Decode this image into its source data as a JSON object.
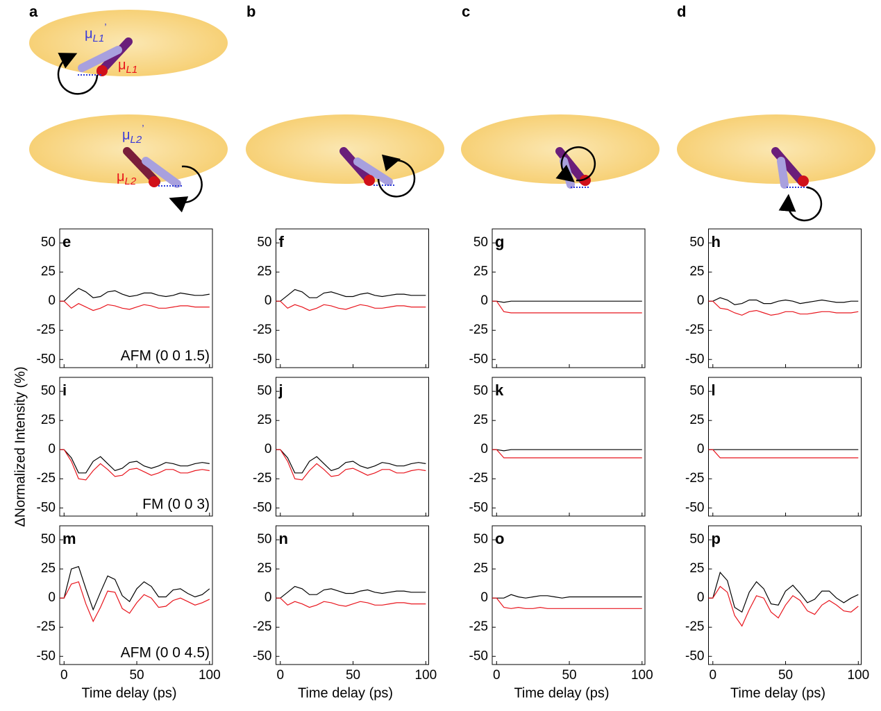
{
  "figure": {
    "panel_labels": [
      "a",
      "b",
      "c",
      "d"
    ],
    "illustration_labels": [
      {
        "symbol": "μ",
        "subscript": "L1",
        "prime": "’"
      },
      {
        "symbol": "μ",
        "subscript": "L1"
      },
      {
        "symbol": "μ",
        "subscript": "L2",
        "prime": "’"
      },
      {
        "symbol": "μ",
        "subscript": "L2"
      }
    ]
  },
  "chart_data": [
    {
      "type": "line",
      "label": "e",
      "annotation": "AFM (0 0 1.5)",
      "xlim": [
        -3,
        102
      ],
      "ylim": [
        -57,
        62
      ],
      "xticks": [
        0,
        50,
        100
      ],
      "yticks": [
        -50,
        -25,
        0,
        25,
        50
      ],
      "x": [
        -3,
        0,
        5,
        10,
        15,
        20,
        25,
        30,
        35,
        40,
        45,
        50,
        55,
        60,
        65,
        70,
        75,
        80,
        85,
        90,
        95,
        100
      ],
      "series": [
        {
          "color": "#000000",
          "values": [
            0,
            0,
            6,
            11,
            8,
            3,
            4,
            8,
            9,
            6,
            4,
            5,
            7,
            7,
            5,
            4,
            5,
            7,
            6,
            5,
            5,
            6
          ]
        },
        {
          "color": "#e8141c",
          "values": [
            0,
            0,
            -6,
            -2,
            -5,
            -8,
            -6,
            -3,
            -4,
            -6,
            -7,
            -5,
            -3,
            -4,
            -6,
            -6,
            -5,
            -4,
            -4,
            -5,
            -5,
            -5
          ]
        }
      ]
    },
    {
      "type": "line",
      "label": "f",
      "xlim": [
        -3,
        102
      ],
      "ylim": [
        -57,
        62
      ],
      "xticks": [
        0,
        50,
        100
      ],
      "yticks": [
        -50,
        -25,
        0,
        25,
        50
      ],
      "x": [
        -3,
        0,
        5,
        10,
        15,
        20,
        25,
        30,
        35,
        40,
        45,
        50,
        55,
        60,
        65,
        70,
        75,
        80,
        85,
        90,
        95,
        100
      ],
      "series": [
        {
          "color": "#000000",
          "values": [
            0,
            0,
            5,
            10,
            8,
            3,
            3,
            7,
            8,
            6,
            4,
            4,
            6,
            7,
            5,
            4,
            5,
            6,
            6,
            5,
            5,
            5
          ]
        },
        {
          "color": "#e8141c",
          "values": [
            0,
            0,
            -6,
            -3,
            -5,
            -8,
            -6,
            -3,
            -4,
            -6,
            -7,
            -5,
            -3,
            -4,
            -6,
            -6,
            -5,
            -4,
            -4,
            -5,
            -5,
            -5
          ]
        }
      ]
    },
    {
      "type": "line",
      "label": "g",
      "xlim": [
        -3,
        102
      ],
      "ylim": [
        -57,
        62
      ],
      "xticks": [
        0,
        50,
        100
      ],
      "yticks": [
        -50,
        -25,
        0,
        25,
        50
      ],
      "x": [
        -3,
        0,
        5,
        10,
        15,
        20,
        25,
        30,
        35,
        40,
        45,
        50,
        55,
        60,
        65,
        70,
        75,
        80,
        85,
        90,
        95,
        100
      ],
      "series": [
        {
          "color": "#000000",
          "values": [
            0,
            0,
            -1,
            0,
            0,
            0,
            0,
            0,
            0,
            0,
            0,
            0,
            0,
            0,
            0,
            0,
            0,
            0,
            0,
            0,
            0,
            0
          ]
        },
        {
          "color": "#e8141c",
          "values": [
            0,
            0,
            -9,
            -10,
            -10,
            -10,
            -10,
            -10,
            -10,
            -10,
            -10,
            -10,
            -10,
            -10,
            -10,
            -10,
            -10,
            -10,
            -10,
            -10,
            -10,
            -10
          ]
        }
      ]
    },
    {
      "type": "line",
      "label": "h",
      "xlim": [
        -3,
        102
      ],
      "ylim": [
        -57,
        62
      ],
      "xticks": [
        0,
        50,
        100
      ],
      "yticks": [
        -50,
        -25,
        0,
        25,
        50
      ],
      "x": [
        -3,
        0,
        5,
        10,
        15,
        20,
        25,
        30,
        35,
        40,
        45,
        50,
        55,
        60,
        65,
        70,
        75,
        80,
        85,
        90,
        95,
        100
      ],
      "series": [
        {
          "color": "#000000",
          "values": [
            0,
            0,
            3,
            1,
            -3,
            -2,
            1,
            1,
            -2,
            -2,
            0,
            1,
            0,
            -2,
            -1,
            0,
            1,
            0,
            -1,
            -1,
            0,
            0
          ]
        },
        {
          "color": "#e8141c",
          "values": [
            0,
            0,
            -6,
            -7,
            -10,
            -12,
            -9,
            -8,
            -10,
            -12,
            -11,
            -9,
            -9,
            -11,
            -11,
            -10,
            -9,
            -9,
            -10,
            -10,
            -10,
            -9
          ]
        }
      ]
    },
    {
      "type": "line",
      "label": "i",
      "annotation": "FM (0 0 3)",
      "ylabel": "ΔNormalized Intensity (%)",
      "xlim": [
        -3,
        102
      ],
      "ylim": [
        -57,
        62
      ],
      "xticks": [
        0,
        50,
        100
      ],
      "yticks": [
        -50,
        -25,
        0,
        25,
        50
      ],
      "x": [
        -3,
        0,
        5,
        10,
        15,
        20,
        25,
        30,
        35,
        40,
        45,
        50,
        55,
        60,
        65,
        70,
        75,
        80,
        85,
        90,
        95,
        100
      ],
      "series": [
        {
          "color": "#000000",
          "values": [
            0,
            0,
            -7,
            -20,
            -20,
            -10,
            -6,
            -12,
            -18,
            -16,
            -11,
            -10,
            -14,
            -16,
            -14,
            -11,
            -12,
            -14,
            -14,
            -12,
            -11,
            -12
          ]
        },
        {
          "color": "#e8141c",
          "values": [
            0,
            0,
            -10,
            -25,
            -26,
            -18,
            -12,
            -17,
            -23,
            -22,
            -17,
            -16,
            -19,
            -22,
            -20,
            -17,
            -17,
            -20,
            -20,
            -18,
            -17,
            -18
          ]
        }
      ]
    },
    {
      "type": "line",
      "label": "j",
      "xlim": [
        -3,
        102
      ],
      "ylim": [
        -57,
        62
      ],
      "xticks": [
        0,
        50,
        100
      ],
      "yticks": [
        -50,
        -25,
        0,
        25,
        50
      ],
      "x": [
        -3,
        0,
        5,
        10,
        15,
        20,
        25,
        30,
        35,
        40,
        45,
        50,
        55,
        60,
        65,
        70,
        75,
        80,
        85,
        90,
        95,
        100
      ],
      "series": [
        {
          "color": "#000000",
          "values": [
            0,
            0,
            -7,
            -20,
            -20,
            -10,
            -6,
            -12,
            -18,
            -16,
            -11,
            -10,
            -14,
            -16,
            -14,
            -11,
            -12,
            -14,
            -14,
            -12,
            -11,
            -12
          ]
        },
        {
          "color": "#e8141c",
          "values": [
            0,
            0,
            -10,
            -25,
            -26,
            -18,
            -12,
            -17,
            -23,
            -22,
            -17,
            -16,
            -19,
            -22,
            -20,
            -17,
            -17,
            -20,
            -20,
            -18,
            -17,
            -18
          ]
        }
      ]
    },
    {
      "type": "line",
      "label": "k",
      "xlim": [
        -3,
        102
      ],
      "ylim": [
        -57,
        62
      ],
      "xticks": [
        0,
        50,
        100
      ],
      "yticks": [
        -50,
        -25,
        0,
        25,
        50
      ],
      "x": [
        -3,
        0,
        5,
        10,
        15,
        20,
        25,
        30,
        35,
        40,
        45,
        50,
        55,
        60,
        65,
        70,
        75,
        80,
        85,
        90,
        95,
        100
      ],
      "series": [
        {
          "color": "#000000",
          "values": [
            0,
            0,
            -1,
            0,
            0,
            0,
            0,
            0,
            0,
            0,
            0,
            0,
            0,
            0,
            0,
            0,
            0,
            0,
            0,
            0,
            0,
            0
          ]
        },
        {
          "color": "#e8141c",
          "values": [
            0,
            0,
            -7,
            -7,
            -7,
            -7,
            -7,
            -7,
            -7,
            -7,
            -7,
            -7,
            -7,
            -7,
            -7,
            -7,
            -7,
            -7,
            -7,
            -7,
            -7,
            -7
          ]
        }
      ]
    },
    {
      "type": "line",
      "label": "l",
      "xlim": [
        -3,
        102
      ],
      "ylim": [
        -57,
        62
      ],
      "xticks": [
        0,
        50,
        100
      ],
      "yticks": [
        -50,
        -25,
        0,
        25,
        50
      ],
      "x": [
        -3,
        0,
        5,
        10,
        15,
        20,
        25,
        30,
        35,
        40,
        45,
        50,
        55,
        60,
        65,
        70,
        75,
        80,
        85,
        90,
        95,
        100
      ],
      "series": [
        {
          "color": "#000000",
          "values": [
            0,
            0,
            0,
            0,
            0,
            0,
            0,
            0,
            0,
            0,
            0,
            0,
            0,
            0,
            0,
            0,
            0,
            0,
            0,
            0,
            0,
            0
          ]
        },
        {
          "color": "#e8141c",
          "values": [
            0,
            0,
            -7,
            -7,
            -7,
            -7,
            -7,
            -7,
            -7,
            -7,
            -7,
            -7,
            -7,
            -7,
            -7,
            -7,
            -7,
            -7,
            -7,
            -7,
            -7,
            -7
          ]
        }
      ]
    },
    {
      "type": "line",
      "label": "m",
      "annotation": "AFM (0 0 4.5)",
      "xlabel": "Time delay (ps)",
      "xlim": [
        -3,
        102
      ],
      "ylim": [
        -57,
        62
      ],
      "xticks": [
        0,
        50,
        100
      ],
      "yticks": [
        -50,
        -25,
        0,
        25,
        50
      ],
      "x": [
        -3,
        0,
        5,
        10,
        15,
        20,
        25,
        30,
        35,
        40,
        45,
        50,
        55,
        60,
        65,
        70,
        75,
        80,
        85,
        90,
        95,
        100
      ],
      "series": [
        {
          "color": "#000000",
          "values": [
            0,
            0,
            25,
            27,
            8,
            -10,
            5,
            19,
            16,
            2,
            -3,
            8,
            14,
            10,
            1,
            1,
            7,
            8,
            4,
            1,
            3,
            8
          ]
        },
        {
          "color": "#e8141c",
          "values": [
            0,
            0,
            12,
            14,
            -5,
            -20,
            -8,
            6,
            5,
            -9,
            -13,
            -4,
            3,
            0,
            -8,
            -7,
            -2,
            0,
            -3,
            -6,
            -4,
            -1
          ]
        }
      ]
    },
    {
      "type": "line",
      "label": "n",
      "xlabel": "Time delay (ps)",
      "xlim": [
        -3,
        102
      ],
      "ylim": [
        -57,
        62
      ],
      "xticks": [
        0,
        50,
        100
      ],
      "yticks": [
        -50,
        -25,
        0,
        25,
        50
      ],
      "x": [
        -3,
        0,
        5,
        10,
        15,
        20,
        25,
        30,
        35,
        40,
        45,
        50,
        55,
        60,
        65,
        70,
        75,
        80,
        85,
        90,
        95,
        100
      ],
      "series": [
        {
          "color": "#000000",
          "values": [
            0,
            0,
            5,
            10,
            8,
            3,
            3,
            7,
            8,
            6,
            4,
            4,
            6,
            7,
            5,
            4,
            5,
            6,
            6,
            5,
            5,
            5
          ]
        },
        {
          "color": "#e8141c",
          "values": [
            0,
            0,
            -6,
            -3,
            -5,
            -8,
            -6,
            -3,
            -4,
            -6,
            -7,
            -5,
            -3,
            -4,
            -6,
            -6,
            -5,
            -4,
            -4,
            -5,
            -5,
            -5
          ]
        }
      ]
    },
    {
      "type": "line",
      "label": "o",
      "xlabel": "Time delay (ps)",
      "xlim": [
        -3,
        102
      ],
      "ylim": [
        -57,
        62
      ],
      "xticks": [
        0,
        50,
        100
      ],
      "yticks": [
        -50,
        -25,
        0,
        25,
        50
      ],
      "x": [
        -3,
        0,
        5,
        10,
        15,
        20,
        25,
        30,
        35,
        40,
        45,
        50,
        55,
        60,
        65,
        70,
        75,
        80,
        85,
        90,
        95,
        100
      ],
      "series": [
        {
          "color": "#000000",
          "values": [
            0,
            0,
            0,
            3,
            1,
            0,
            1,
            2,
            2,
            1,
            0,
            1,
            1,
            1,
            1,
            1,
            1,
            1,
            1,
            1,
            1,
            1
          ]
        },
        {
          "color": "#e8141c",
          "values": [
            0,
            0,
            -8,
            -9,
            -8,
            -9,
            -9,
            -8,
            -9,
            -9,
            -9,
            -9,
            -9,
            -9,
            -9,
            -9,
            -9,
            -9,
            -9,
            -9,
            -9,
            -9
          ]
        }
      ]
    },
    {
      "type": "line",
      "label": "p",
      "xlabel": "Time delay (ps)",
      "xlim": [
        -3,
        102
      ],
      "ylim": [
        -57,
        62
      ],
      "xticks": [
        0,
        50,
        100
      ],
      "yticks": [
        -50,
        -25,
        0,
        25,
        50
      ],
      "x": [
        -3,
        0,
        5,
        10,
        15,
        20,
        25,
        30,
        35,
        40,
        45,
        50,
        55,
        60,
        65,
        70,
        75,
        80,
        85,
        90,
        95,
        100
      ],
      "series": [
        {
          "color": "#000000",
          "values": [
            0,
            0,
            22,
            15,
            -8,
            -12,
            5,
            14,
            8,
            -5,
            -6,
            6,
            11,
            4,
            -4,
            -1,
            6,
            6,
            0,
            -4,
            0,
            3
          ]
        },
        {
          "color": "#e8141c",
          "values": [
            0,
            0,
            10,
            5,
            -15,
            -24,
            -10,
            2,
            0,
            -12,
            -17,
            -6,
            2,
            -2,
            -11,
            -14,
            -6,
            -2,
            -6,
            -11,
            -12,
            -7
          ]
        }
      ]
    }
  ]
}
